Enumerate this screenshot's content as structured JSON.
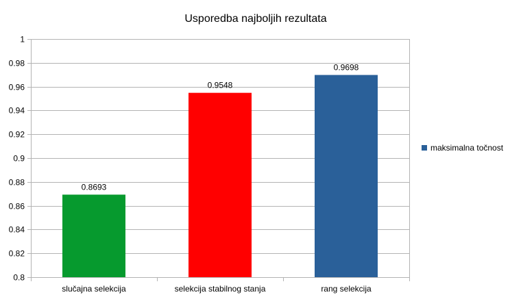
{
  "chart_data": {
    "type": "bar",
    "title": "Usporedba najboljih rezultata",
    "xlabel": "",
    "ylabel": "",
    "categories": [
      "slučajna selekcija",
      "selekcija stabilnog stanja",
      "rang selekcija"
    ],
    "series": [
      {
        "name": "maksimalna točnost",
        "values": [
          0.8693,
          0.9548,
          0.9698
        ],
        "value_labels": [
          "0.8693",
          "0.9548",
          "0.9698"
        ],
        "bar_colors": [
          "#069a2e",
          "#ff0000",
          "#2a6099"
        ]
      }
    ],
    "ylim": [
      0.8,
      1
    ],
    "yticks": [
      0.8,
      0.82,
      0.84,
      0.86,
      0.88,
      0.9,
      0.92,
      0.94,
      0.96,
      0.98,
      1
    ],
    "ytick_labels": [
      "0.8",
      "0.82",
      "0.84",
      "0.86",
      "0.88",
      "0.9",
      "0.92",
      "0.94",
      "0.96",
      "0.98",
      "1"
    ],
    "grid": true,
    "legend_position": "right",
    "legend_color": "#2a6099"
  }
}
